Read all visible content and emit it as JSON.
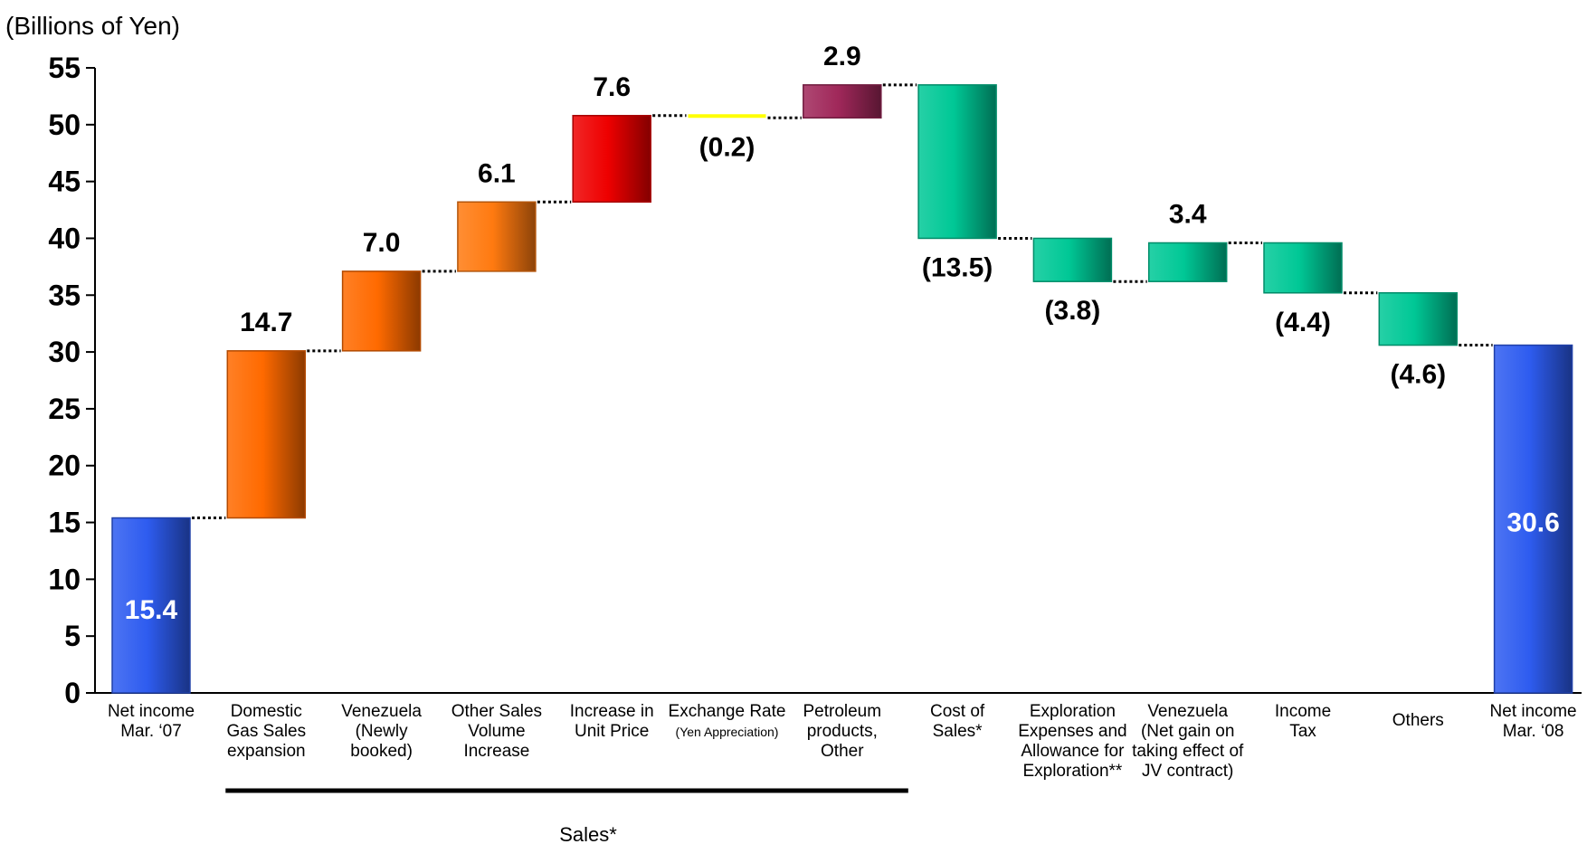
{
  "chart_data": {
    "type": "waterfall",
    "unit_label": "(Billions of Yen)",
    "ylim": [
      0,
      55
    ],
    "yticks": [
      "0",
      "5",
      "10",
      "15",
      "20",
      "25",
      "30",
      "35",
      "40",
      "45",
      "50",
      "55"
    ],
    "ytick_values": [
      0,
      5,
      10,
      15,
      20,
      25,
      30,
      35,
      40,
      45,
      50,
      55
    ],
    "grid": false,
    "bars": [
      {
        "lines": [
          "Net income",
          "Mar. ‘07"
        ],
        "value": 15.4,
        "start": 0,
        "end": 15.4,
        "label": "15.4",
        "kind": "total",
        "color": "#2e5cf0"
      },
      {
        "lines": [
          "Domestic",
          "Gas Sales",
          "expansion"
        ],
        "value": 14.7,
        "start": 15.4,
        "end": 30.1,
        "label": "14.7",
        "kind": "sales",
        "color": "#ff6a00"
      },
      {
        "lines": [
          "Venezuela",
          "(Newly",
          "booked)"
        ],
        "value": 7.0,
        "start": 30.1,
        "end": 37.1,
        "label": "7.0",
        "kind": "sales",
        "color": "#ff6a00"
      },
      {
        "lines": [
          "Other Sales",
          "Volume",
          "Increase"
        ],
        "value": 6.1,
        "start": 37.1,
        "end": 43.2,
        "label": "6.1",
        "kind": "sales",
        "color": "#ff7a10"
      },
      {
        "lines": [
          "Increase in",
          "Unit Price"
        ],
        "value": 7.6,
        "start": 43.2,
        "end": 50.8,
        "label": "7.6",
        "kind": "sales",
        "color": "#ee0000"
      },
      {
        "lines": [
          "Exchange Rate"
        ],
        "small_line": "(Yen Appreciation)",
        "value": -0.2,
        "start": 50.8,
        "end": 50.6,
        "label": "(0.2)",
        "kind": "thin",
        "color": "#ffff00"
      },
      {
        "lines": [
          "Petroleum",
          "products,",
          "Other"
        ],
        "value": 2.9,
        "start": 50.6,
        "end": 53.5,
        "label": "2.9",
        "kind": "sales",
        "color": "#a0285a"
      },
      {
        "lines": [
          "Cost of",
          "Sales*"
        ],
        "value": -13.5,
        "start": 53.5,
        "end": 40.0,
        "label": "(13.5)",
        "kind": "cost",
        "color": "#00c896"
      },
      {
        "lines": [
          "Exploration",
          "Expenses and",
          "Allowance for",
          "Exploration**"
        ],
        "value": -3.8,
        "start": 40.0,
        "end": 36.2,
        "label": "(3.8)",
        "kind": "cost",
        "color": "#00c896"
      },
      {
        "lines": [
          "Venezuela",
          "(Net gain on",
          "taking effect of",
          "JV contract)"
        ],
        "value": 3.4,
        "start": 36.2,
        "end": 39.6,
        "label": "3.4",
        "kind": "cost",
        "color": "#00c896"
      },
      {
        "lines": [
          "Income",
          "Tax"
        ],
        "value": -4.4,
        "start": 39.6,
        "end": 35.2,
        "label": "(4.4)",
        "kind": "cost",
        "color": "#00c896"
      },
      {
        "lines": [
          "Others"
        ],
        "value": -4.6,
        "start": 35.2,
        "end": 30.6,
        "label": "(4.6)",
        "kind": "cost",
        "color": "#00c896"
      },
      {
        "lines": [
          "Net income",
          "Mar. ‘08"
        ],
        "value": 30.6,
        "start": 0,
        "end": 30.6,
        "label": "30.6",
        "kind": "total",
        "color": "#2e5cf0"
      }
    ],
    "group": {
      "label": "Sales*",
      "from": 1,
      "to": 6
    }
  }
}
